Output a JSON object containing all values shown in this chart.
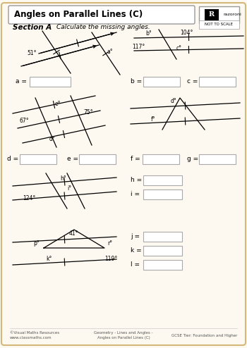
{
  "title": "Angles on Parallel Lines (C)",
  "section_label": "Section A",
  "section_instruction": "Calculate the missing angles.",
  "bg_color": "#fdf9f0",
  "border_color": "#d4b87a",
  "footer_left": "©Visual Maths Resources\nwww.classmaths.com",
  "footer_center": "Geometry - Lines and Angles -\nAngles on Parallel Lines (C)",
  "footer_right": "GCSE Tier: Foundation and Higher",
  "not_to_scale": "NOT TO SCALE"
}
